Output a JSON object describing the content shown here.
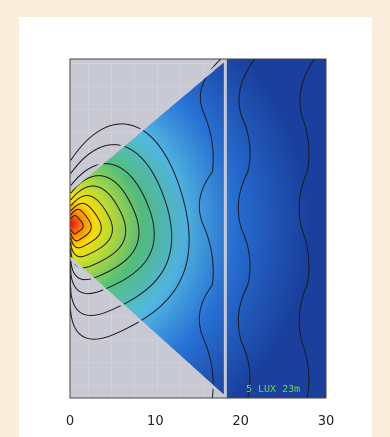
{
  "chart_data": {
    "type": "heatmap",
    "title": "",
    "xlabel": "",
    "ylabel": "",
    "xlim": [
      0,
      30
    ],
    "x_ticks": [
      0,
      10,
      20,
      30
    ],
    "x_tick_labels": [
      "0",
      "10",
      "20",
      "30"
    ],
    "grid": true,
    "colormap": [
      "#1a3f9c",
      "#2a7be0",
      "#58c6ea",
      "#56c878",
      "#c8e22a",
      "#ffe100",
      "#ff8a00",
      "#e80f0f"
    ],
    "annotations": [
      {
        "text": "5 LUX 23m",
        "x": 23.2,
        "color": "#66dd33"
      }
    ],
    "beam_cone": {
      "apex_x": 0,
      "half_angle_deg": 46
    },
    "hotspot_x": 0.8
  }
}
